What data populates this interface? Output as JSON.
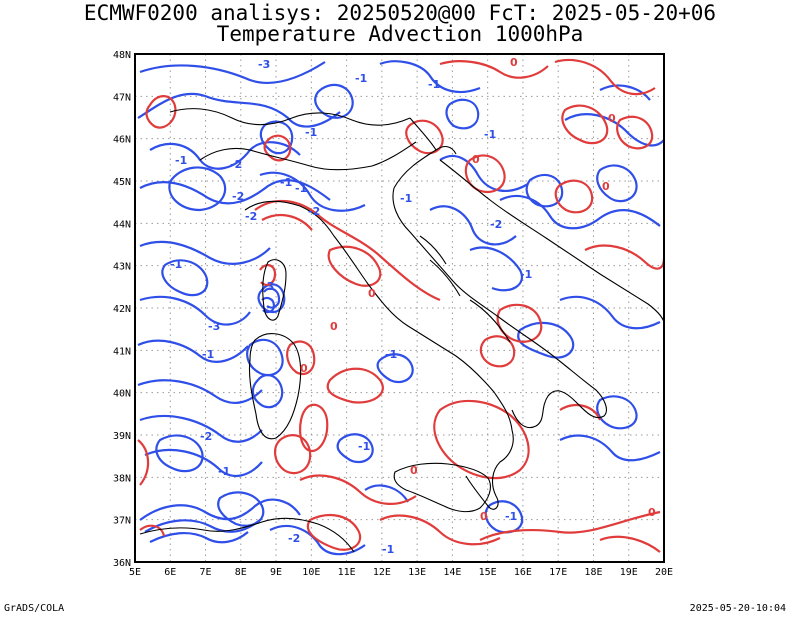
{
  "header": {
    "title_line1": "ECMWF0200 analisys: 20250520@00 FcT: 2025-05-20+06",
    "title_line2": "Temperature Advection 1000hPa"
  },
  "map": {
    "lat_labels": [
      "36N",
      "37N",
      "38N",
      "39N",
      "40N",
      "41N",
      "42N",
      "43N",
      "44N",
      "45N",
      "46N",
      "47N",
      "48N"
    ],
    "lon_labels": [
      "5E",
      "6E",
      "7E",
      "8E",
      "9E",
      "10E",
      "11E",
      "12E",
      "13E",
      "14E",
      "15E",
      "16E",
      "17E",
      "18E",
      "19E",
      "20E"
    ],
    "contour_labels": [
      {
        "text": "-1",
        "color": "blue"
      },
      {
        "text": "-2",
        "color": "blue"
      },
      {
        "text": "-3",
        "color": "blue"
      },
      {
        "text": "-1",
        "color": "blue"
      },
      {
        "text": "-2",
        "color": "blue"
      },
      {
        "text": "-1",
        "color": "blue"
      },
      {
        "text": "-1",
        "color": "blue"
      },
      {
        "text": "-2",
        "color": "blue"
      },
      {
        "text": "-1",
        "color": "blue"
      },
      {
        "text": "-1",
        "color": "blue"
      },
      {
        "text": "-2",
        "color": "blue"
      },
      {
        "text": "-1",
        "color": "blue"
      },
      {
        "text": "-1",
        "color": "blue"
      },
      {
        "text": "-3",
        "color": "blue"
      },
      {
        "text": "-2",
        "color": "blue"
      },
      {
        "text": "-1",
        "color": "blue"
      },
      {
        "text": "-1",
        "color": "blue"
      },
      {
        "text": "-1",
        "color": "blue"
      },
      {
        "text": "-2",
        "color": "blue"
      },
      {
        "text": "-1",
        "color": "blue"
      },
      {
        "text": "-1",
        "color": "blue"
      },
      {
        "text": "-1",
        "color": "blue"
      },
      {
        "text": "-3",
        "color": "blue"
      },
      {
        "text": "-2",
        "color": "blue"
      },
      {
        "text": "-1",
        "color": "blue"
      },
      {
        "text": "-1",
        "color": "blue"
      },
      {
        "text": "0",
        "color": "red"
      },
      {
        "text": "0",
        "color": "red"
      },
      {
        "text": "0",
        "color": "red"
      },
      {
        "text": "0",
        "color": "red"
      },
      {
        "text": "0",
        "color": "red"
      },
      {
        "text": "0",
        "color": "red"
      },
      {
        "text": "0",
        "color": "red"
      },
      {
        "text": "0",
        "color": "red"
      },
      {
        "text": "0",
        "color": "red"
      },
      {
        "text": "0",
        "color": "red"
      }
    ],
    "colors": {
      "negative": "#2f4fe8",
      "positive": "#e03c3c",
      "coast": "#000000",
      "grid": "#9a9a9a"
    }
  },
  "footer": {
    "credit": "GrADS/COLA",
    "timestamp": "2025-05-20-10:04"
  }
}
